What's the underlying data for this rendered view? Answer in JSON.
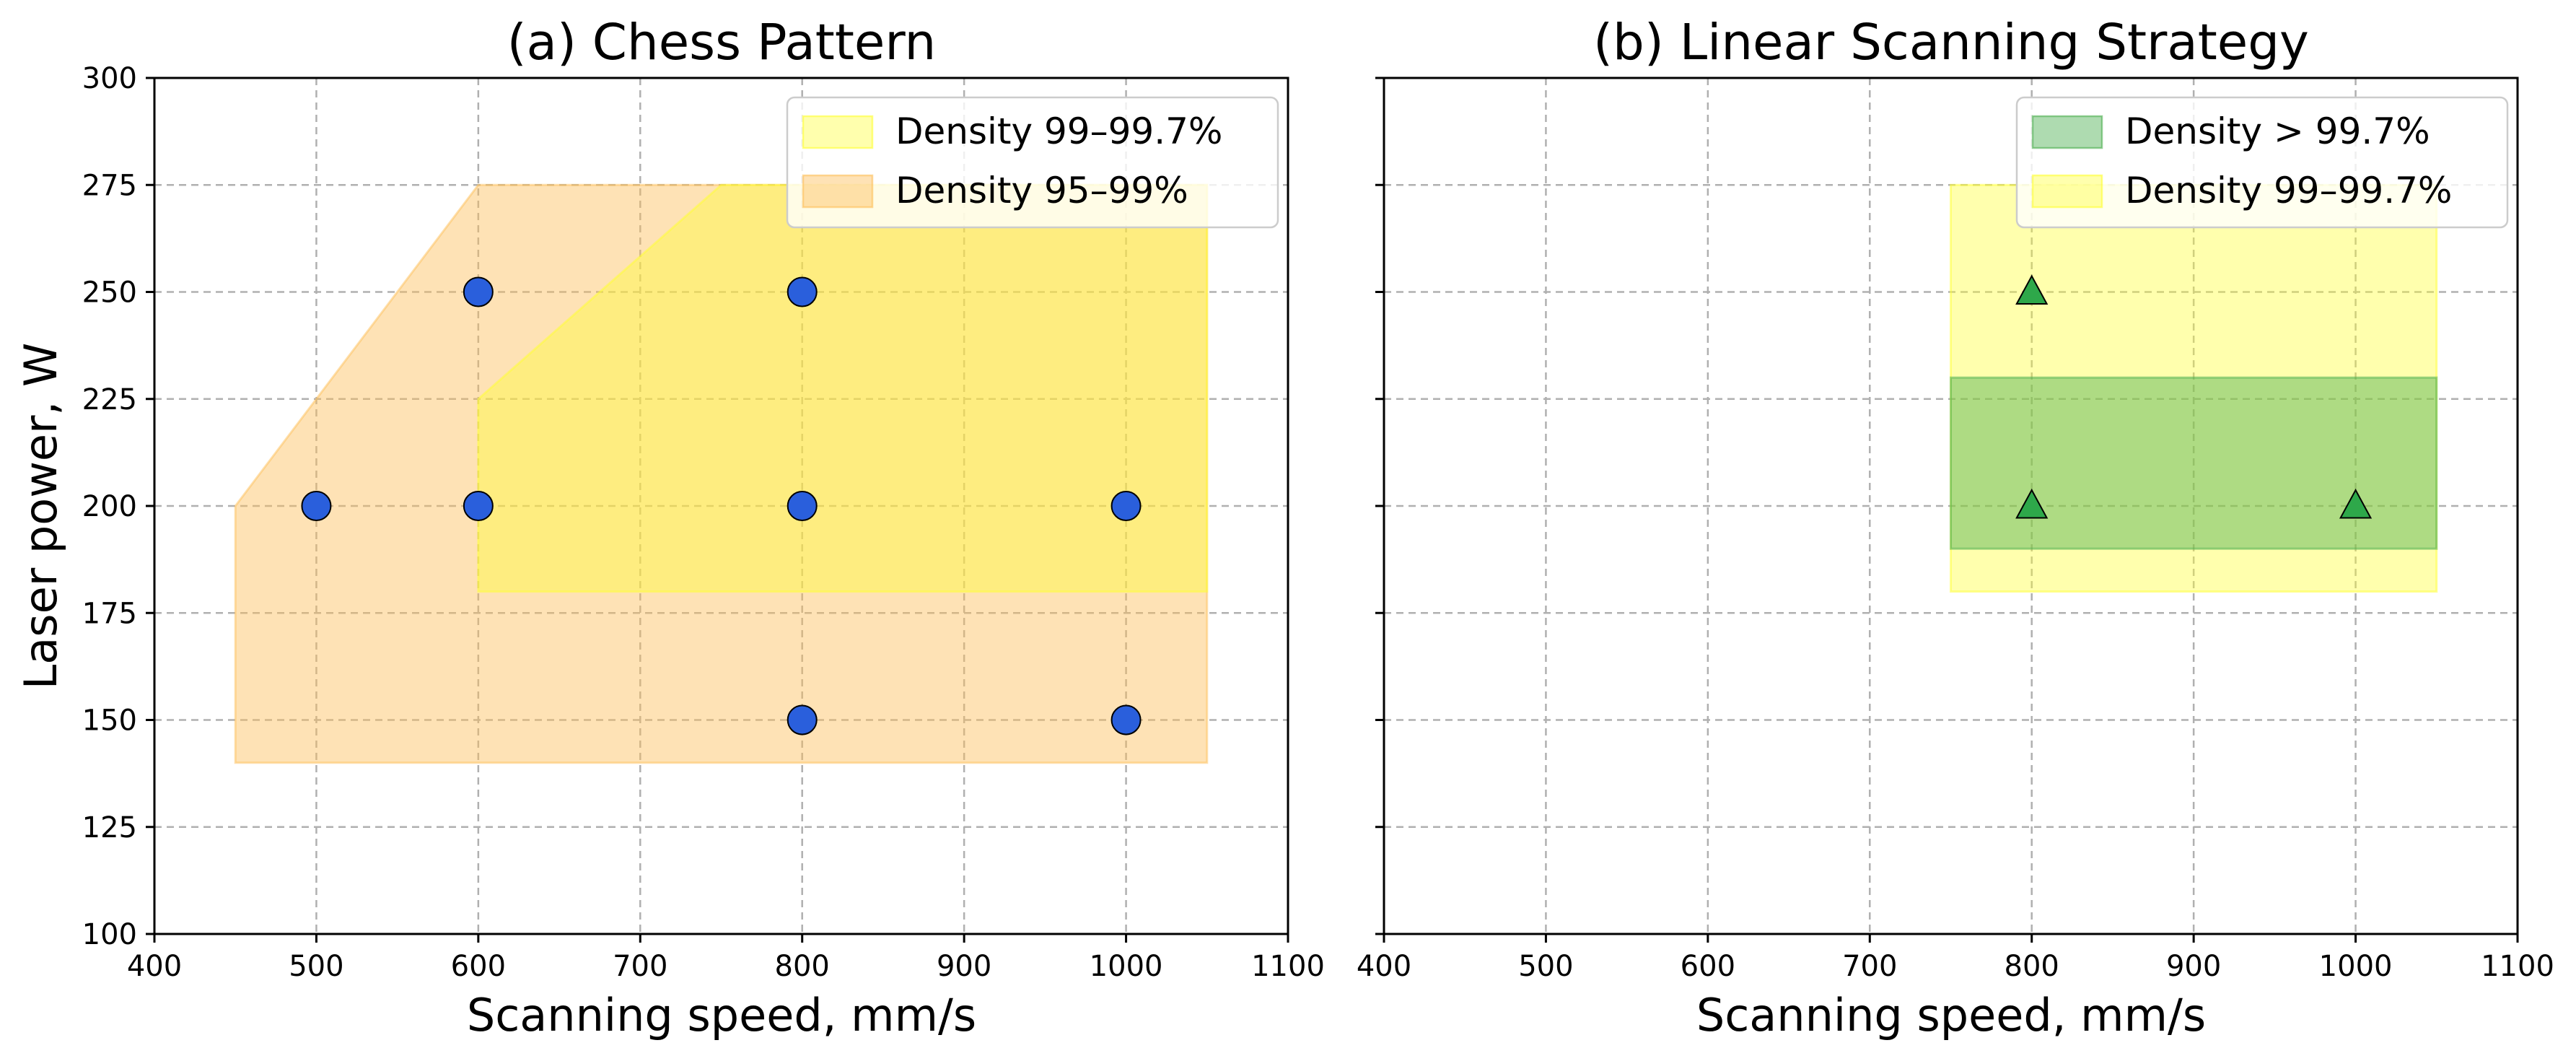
{
  "chart_data": [
    {
      "type": "scatter",
      "title": "(a) Chess Pattern",
      "xlabel": "Scanning speed, mm/s",
      "ylabel": "Laser power, W",
      "xlim": [
        400,
        1100
      ],
      "ylim": [
        100,
        300
      ],
      "xticks": [
        400,
        500,
        600,
        700,
        800,
        900,
        1000,
        1100
      ],
      "yticks": [
        100,
        125,
        150,
        175,
        200,
        225,
        250,
        275,
        300
      ],
      "grid": true,
      "legend_position": "top-right",
      "regions": [
        {
          "name": "Density 95–99%",
          "color": "#fdbf5a",
          "opacity": 0.45,
          "polygon": [
            [
              450,
              140
            ],
            [
              1050,
              140
            ],
            [
              1050,
              275
            ],
            [
              600,
              275
            ],
            [
              450,
              200
            ]
          ]
        },
        {
          "name": "Density 99–99.7%",
          "color": "#ffff33",
          "opacity": 0.4,
          "polygon": [
            [
              600,
              180
            ],
            [
              1050,
              180
            ],
            [
              1050,
              275
            ],
            [
              750,
              275
            ],
            [
              600,
              225
            ]
          ]
        }
      ],
      "legend": [
        {
          "label": "Density 99–99.7%",
          "color": "#ffff33",
          "opacity": 0.4
        },
        {
          "label": "Density 95–99%",
          "color": "#fdbf5a",
          "opacity": 0.45
        }
      ],
      "points": {
        "marker": "circle",
        "color": "#2a5fdc",
        "x": [
          500,
          600,
          600,
          800,
          800,
          800,
          1000,
          1000
        ],
        "y": [
          200,
          200,
          250,
          150,
          200,
          250,
          150,
          200
        ]
      }
    },
    {
      "type": "scatter",
      "title": "(b) Linear Scanning Strategy",
      "xlabel": "Scanning speed, mm/s",
      "ylabel": "",
      "xlim": [
        400,
        1100
      ],
      "ylim": [
        100,
        300
      ],
      "xticks": [
        400,
        500,
        600,
        700,
        800,
        900,
        1000,
        1100
      ],
      "yticks": [],
      "grid": true,
      "legend_position": "top-right",
      "regions": [
        {
          "name": "Density 99–99.7%",
          "color": "#ffff33",
          "opacity": 0.4,
          "polygon": [
            [
              750,
              180
            ],
            [
              1050,
              180
            ],
            [
              1050,
              275
            ],
            [
              750,
              275
            ]
          ]
        },
        {
          "name": "Density > 99.7%",
          "color": "#4caf50",
          "opacity": 0.45,
          "polygon": [
            [
              750,
              190
            ],
            [
              1050,
              190
            ],
            [
              1050,
              230
            ],
            [
              750,
              230
            ]
          ]
        }
      ],
      "legend": [
        {
          "label": "Density > 99.7%",
          "color": "#4caf50",
          "opacity": 0.45
        },
        {
          "label": "Density 99–99.7%",
          "color": "#ffff33",
          "opacity": 0.4
        }
      ],
      "points": {
        "marker": "triangle",
        "color": "#2ea84a",
        "x": [
          800,
          800,
          1000
        ],
        "y": [
          200,
          250,
          200
        ]
      }
    }
  ]
}
